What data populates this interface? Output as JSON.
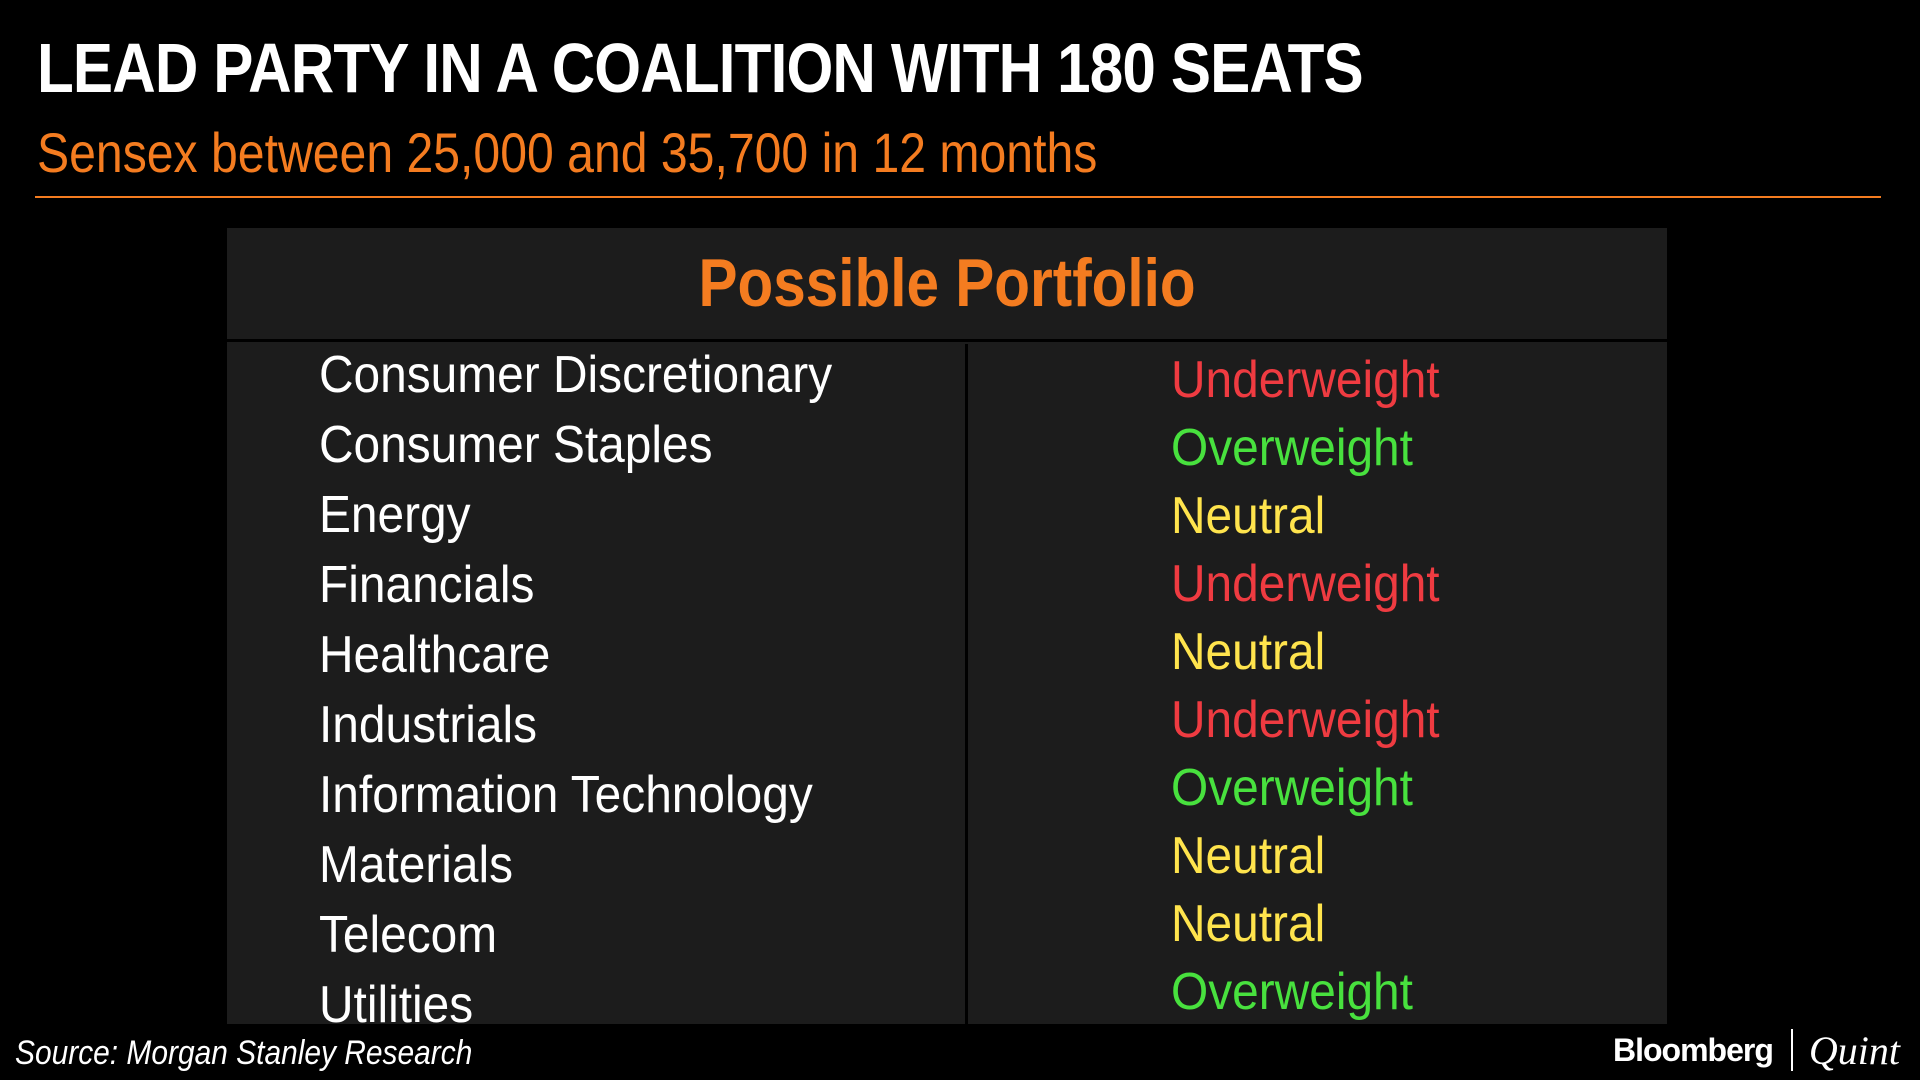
{
  "header": {
    "title": "LEAD PARTY IN A COALITION WITH 180 SEATS",
    "subtitle": "Sensex between 25,000 and 35,700 in 12 months"
  },
  "table": {
    "title": "Possible Portfolio",
    "rows": [
      {
        "sector": "Consumer Discretionary",
        "rating": "Underweight"
      },
      {
        "sector": "Consumer Staples",
        "rating": "Overweight"
      },
      {
        "sector": "Energy",
        "rating": "Neutral"
      },
      {
        "sector": "Financials",
        "rating": "Underweight"
      },
      {
        "sector": "Healthcare",
        "rating": "Neutral"
      },
      {
        "sector": "Industrials",
        "rating": "Underweight"
      },
      {
        "sector": "Information Technology",
        "rating": "Overweight"
      },
      {
        "sector": "Materials",
        "rating": "Neutral"
      },
      {
        "sector": "Telecom",
        "rating": "Neutral"
      },
      {
        "sector": "Utilities",
        "rating": "Overweight"
      }
    ]
  },
  "colors": {
    "accent": "#f47c20",
    "underweight": "#ef3b41",
    "overweight": "#48e13e",
    "neutral": "#ffe44d",
    "panel": "#1c1c1c"
  },
  "footer": {
    "source": "Source: Morgan Stanley Research",
    "logo_bloomberg": "Bloomberg",
    "logo_quint": "Quint"
  }
}
